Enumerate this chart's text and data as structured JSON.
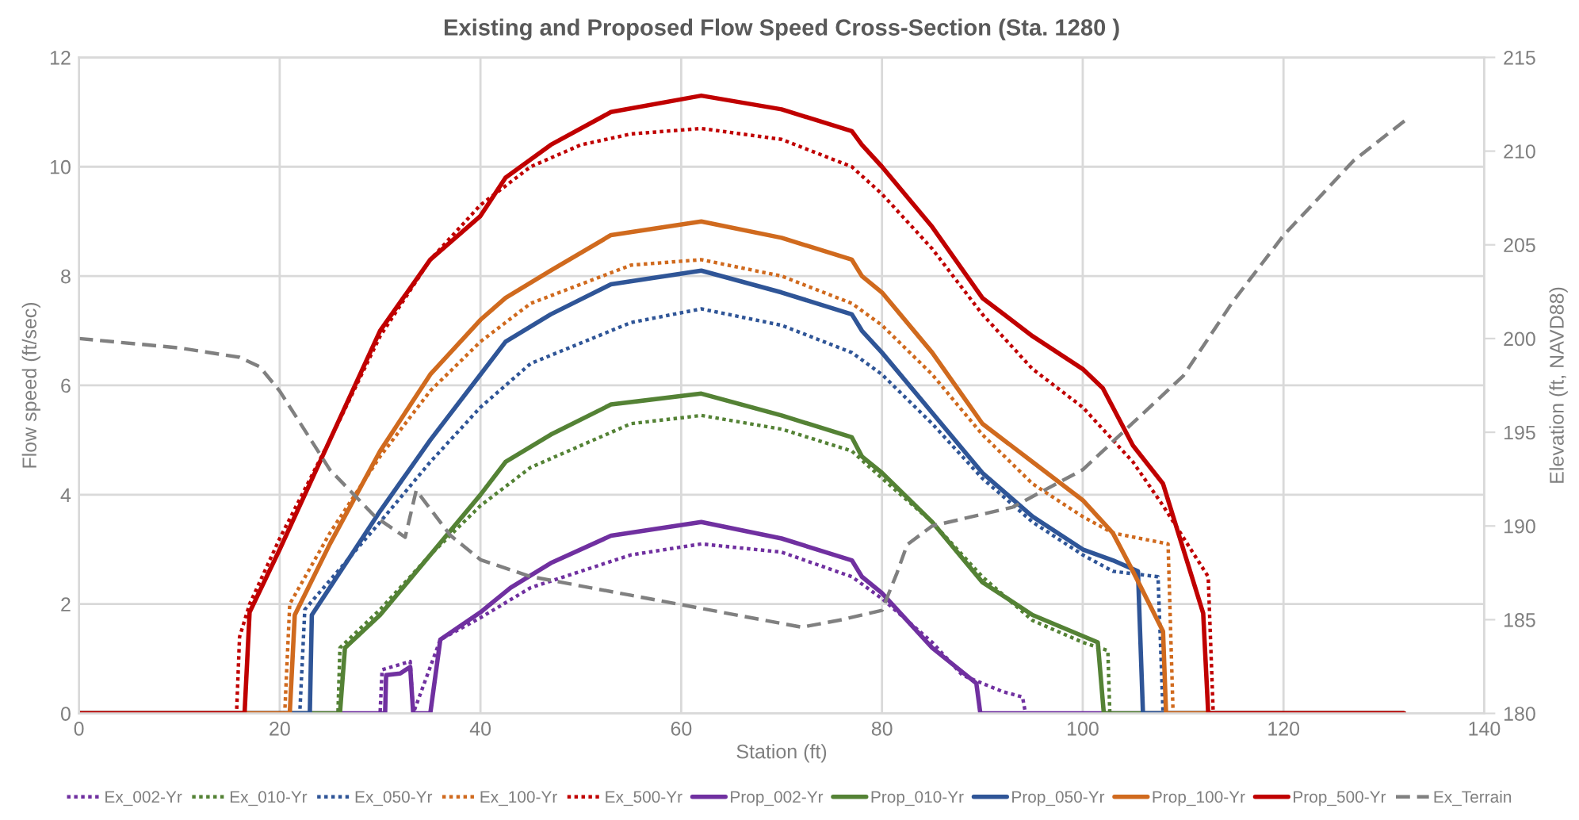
{
  "chart_data": {
    "type": "line",
    "title": "Existing and Proposed Flow Speed Cross-Section (Sta. 1280 )",
    "xlabel": "Station (ft)",
    "ylabel": "Flow speed (ft/sec)",
    "y2label": "Elevation (ft, NAVD88)",
    "xlim": [
      0,
      140
    ],
    "xticks": [
      0,
      20,
      40,
      60,
      80,
      100,
      120,
      140
    ],
    "ylim": [
      0,
      12
    ],
    "yticks": [
      0,
      2,
      4,
      6,
      8,
      10,
      12
    ],
    "y2lim": [
      180,
      215
    ],
    "y2ticks": [
      180,
      185,
      190,
      195,
      200,
      205,
      210,
      215
    ],
    "grid": true,
    "legend": "bottom",
    "marker": "none",
    "series": [
      {
        "name": "Ex_002-Yr",
        "color": "#7030a0",
        "line_style": "dotted",
        "x": [
          0,
          30,
          30.2,
          33,
          33.3,
          36,
          40,
          45,
          55,
          62,
          70,
          77,
          80,
          85,
          88,
          92,
          94,
          94.3,
          132
        ],
        "values": [
          0,
          0,
          0.8,
          0.95,
          0,
          1.35,
          1.75,
          2.3,
          2.9,
          3.1,
          2.95,
          2.5,
          2.1,
          1.3,
          0.7,
          0.4,
          0.3,
          0,
          0
        ]
      },
      {
        "name": "Ex_010-Yr",
        "color": "#548235",
        "line_style": "dotted",
        "x": [
          0,
          25.8,
          26,
          30,
          35,
          40,
          45,
          55,
          62,
          70,
          77,
          80,
          85,
          90,
          95,
          100,
          102.5,
          102.7,
          132
        ],
        "values": [
          0,
          0,
          1.2,
          1.9,
          2.9,
          3.8,
          4.5,
          5.3,
          5.45,
          5.2,
          4.8,
          4.3,
          3.5,
          2.5,
          1.7,
          1.3,
          1.15,
          0,
          0
        ]
      },
      {
        "name": "Ex_050-Yr",
        "color": "#2f5597",
        "line_style": "dotted",
        "x": [
          0,
          22,
          22.5,
          30,
          35,
          40,
          45,
          55,
          62,
          70,
          77,
          80,
          85,
          90,
          95,
          100,
          103,
          107.5,
          108,
          132
        ],
        "values": [
          0,
          0,
          1.9,
          3.5,
          4.6,
          5.6,
          6.4,
          7.15,
          7.4,
          7.1,
          6.6,
          6.2,
          5.3,
          4.3,
          3.5,
          2.9,
          2.6,
          2.5,
          0,
          0
        ]
      },
      {
        "name": "Ex_100-Yr",
        "color": "#d06a1e",
        "line_style": "dotted",
        "x": [
          0,
          20.5,
          21,
          25,
          30,
          35,
          40,
          45,
          55,
          62,
          70,
          77,
          80,
          85,
          90,
          95,
          100,
          103,
          108.5,
          109,
          132
        ],
        "values": [
          0,
          0,
          2,
          3.3,
          4.7,
          5.9,
          6.8,
          7.5,
          8.2,
          8.3,
          8,
          7.5,
          7.1,
          6.2,
          5.1,
          4.2,
          3.6,
          3.3,
          3.1,
          0,
          0
        ]
      },
      {
        "name": "Ex_500-Yr",
        "color": "#c00000",
        "line_style": "dotted",
        "x": [
          0,
          15.7,
          16,
          17,
          20,
          25,
          30,
          35,
          40,
          45,
          50,
          55,
          62,
          70,
          77,
          80,
          85,
          90,
          95,
          100,
          105,
          108,
          112.5,
          113,
          132
        ],
        "values": [
          0,
          0,
          1.4,
          2,
          3.2,
          5,
          6.9,
          8.3,
          9.3,
          10,
          10.4,
          10.6,
          10.7,
          10.5,
          10,
          9.5,
          8.5,
          7.3,
          6.3,
          5.6,
          4.6,
          3.8,
          2.5,
          0,
          0
        ]
      },
      {
        "name": "Prop_002-Yr",
        "color": "#7030a0",
        "line_style": "solid",
        "x": [
          0,
          30.5,
          30.6,
          32,
          33,
          33.3,
          35,
          36,
          40,
          43,
          47,
          53,
          62,
          70,
          77,
          78,
          80,
          85,
          89.4,
          89.8,
          132
        ],
        "values": [
          0,
          0,
          0.7,
          0.73,
          0.85,
          0,
          0,
          1.35,
          1.85,
          2.3,
          2.75,
          3.25,
          3.5,
          3.2,
          2.8,
          2.5,
          2.2,
          1.2,
          0.55,
          0,
          0
        ]
      },
      {
        "name": "Prop_010-Yr",
        "color": "#548235",
        "line_style": "solid",
        "x": [
          0,
          26,
          26.5,
          30,
          35,
          40,
          42.5,
          47,
          53,
          62,
          70,
          77,
          78,
          80,
          85,
          90,
          95,
          101.5,
          102.1,
          132
        ],
        "values": [
          0,
          0,
          1.2,
          1.8,
          2.9,
          4,
          4.6,
          5.1,
          5.65,
          5.85,
          5.45,
          5.05,
          4.7,
          4.4,
          3.5,
          2.4,
          1.8,
          1.3,
          0,
          0
        ]
      },
      {
        "name": "Prop_050-Yr",
        "color": "#2f5597",
        "line_style": "solid",
        "x": [
          0,
          23,
          23.2,
          30,
          35,
          40,
          42.5,
          47,
          53,
          62,
          70,
          77,
          78,
          80,
          85,
          90,
          95,
          100,
          103,
          105.5,
          106,
          132
        ],
        "values": [
          0,
          0,
          1.8,
          3.7,
          5,
          6.2,
          6.8,
          7.3,
          7.85,
          8.1,
          7.7,
          7.3,
          7,
          6.6,
          5.5,
          4.4,
          3.6,
          3,
          2.8,
          2.6,
          0,
          0
        ]
      },
      {
        "name": "Prop_100-Yr",
        "color": "#d06a1e",
        "line_style": "solid",
        "x": [
          0,
          21,
          21.5,
          25,
          30,
          35,
          40,
          42.5,
          47,
          53,
          62,
          70,
          77,
          78,
          80,
          85,
          90,
          95,
          100,
          103,
          105,
          108,
          108.3,
          132
        ],
        "values": [
          0,
          0,
          1.8,
          3.1,
          4.8,
          6.2,
          7.2,
          7.6,
          8.1,
          8.75,
          9,
          8.7,
          8.3,
          8,
          7.7,
          6.6,
          5.3,
          4.6,
          3.9,
          3.3,
          2.6,
          1.5,
          0,
          0
        ]
      },
      {
        "name": "Prop_500-Yr",
        "color": "#c00000",
        "line_style": "solid",
        "x": [
          0,
          16.5,
          17,
          20,
          25,
          30,
          35,
          40,
          42.5,
          47,
          53,
          62,
          70,
          77,
          78,
          80,
          85,
          90,
          95,
          100,
          102,
          105,
          108,
          112,
          112.5,
          132
        ],
        "values": [
          0,
          0,
          1.85,
          3,
          5,
          7,
          8.3,
          9.1,
          9.8,
          10.4,
          11,
          11.3,
          11.05,
          10.65,
          10.4,
          10,
          8.9,
          7.6,
          6.9,
          6.3,
          5.95,
          4.9,
          4.2,
          1.83,
          0,
          0
        ]
      },
      {
        "name": "Ex_Terrain",
        "color": "#808080",
        "line_style": "dashed",
        "axis": "y2",
        "x": [
          0,
          10,
          16,
          18,
          20,
          25,
          29.5,
          32.5,
          33.6,
          37,
          40,
          45,
          55,
          62,
          72,
          76,
          80,
          81.5,
          82.5,
          85,
          93,
          100,
          105,
          110,
          115,
          120,
          127,
          132.5
        ],
        "values": [
          200,
          199.5,
          199,
          198.5,
          197.2,
          193,
          190.5,
          189.4,
          191.9,
          189.5,
          188.2,
          187.3,
          186.3,
          185.6,
          184.6,
          185,
          185.5,
          187.5,
          189,
          190,
          191,
          193,
          195.5,
          198,
          202,
          205.5,
          209.5,
          211.8
        ]
      }
    ]
  }
}
